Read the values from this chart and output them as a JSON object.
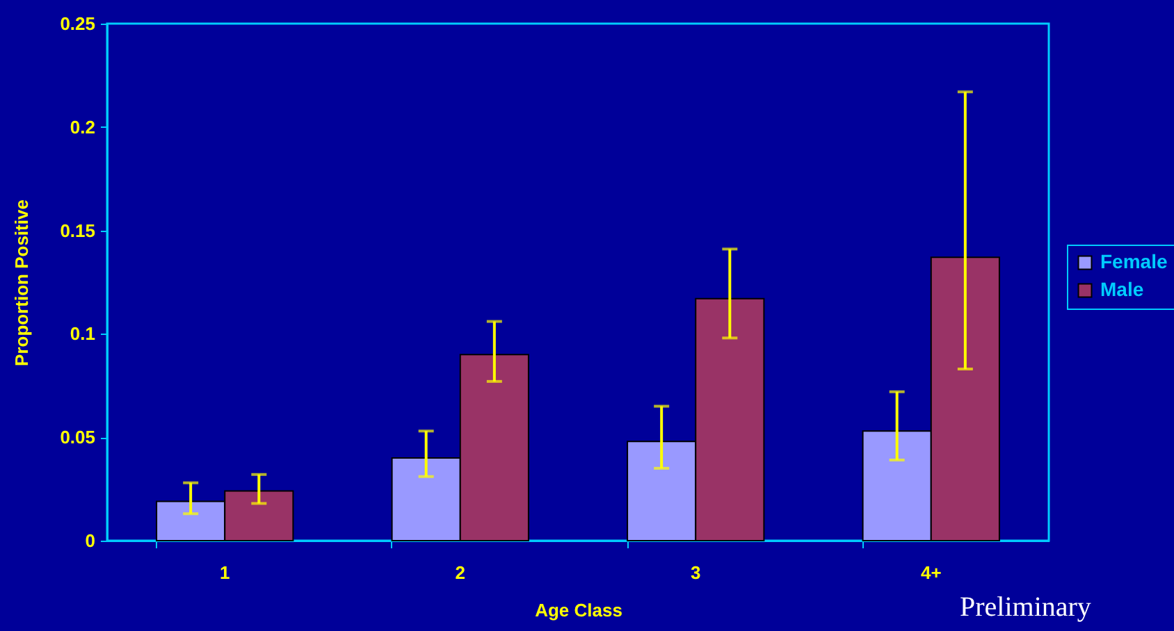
{
  "chart_data": {
    "type": "bar",
    "xlabel": "Age Class",
    "ylabel": "Proportion Positive",
    "categories": [
      "1",
      "2",
      "3",
      "4+"
    ],
    "series": [
      {
        "name": "Female",
        "color": "#9999ff",
        "values": [
          0.019,
          0.04,
          0.048,
          0.053
        ],
        "errors": [
          [
            0.013,
            0.028
          ],
          [
            0.031,
            0.053
          ],
          [
            0.035,
            0.065
          ],
          [
            0.039,
            0.072
          ]
        ]
      },
      {
        "name": "Male",
        "color": "#993366",
        "values": [
          0.024,
          0.09,
          0.117,
          0.137
        ],
        "errors": [
          [
            0.018,
            0.032
          ],
          [
            0.077,
            0.106
          ],
          [
            0.098,
            0.141
          ],
          [
            0.083,
            0.217
          ]
        ]
      }
    ],
    "ylim": [
      0,
      0.25
    ],
    "yticks": [
      0,
      0.05,
      0.1,
      0.15,
      0.2,
      0.25
    ],
    "grid": false,
    "legend": "right",
    "annotations": [
      "Preliminary"
    ]
  }
}
